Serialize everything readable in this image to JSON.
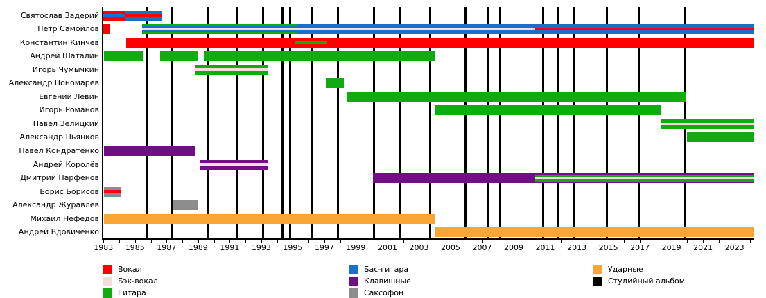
{
  "colors": {
    "vocal": "#ff0000",
    "backing": "#f7dada",
    "guitar": "#0fab0f",
    "bass": "#1a6fc9",
    "keys": "#730d86",
    "sax": "#8c8c8c",
    "drums": "#f9a637",
    "album": "#000000"
  },
  "legend": {
    "columns": [
      [
        {
          "label": "Вокал",
          "role": "vocal"
        },
        {
          "label": "Бэк-вокал",
          "role": "backing"
        },
        {
          "label": "Гитара",
          "role": "guitar"
        }
      ],
      [
        {
          "label": "Бас-гитара",
          "role": "bass"
        },
        {
          "label": "Клавишные",
          "role": "keys"
        },
        {
          "label": "Саксофон",
          "role": "sax"
        }
      ],
      [
        {
          "label": "Ударные",
          "role": "drums"
        },
        {
          "label": "Студийный альбом",
          "role": "album"
        }
      ]
    ]
  },
  "chart_data": {
    "type": "timeline",
    "title": "",
    "x_axis": {
      "min": 1982.9,
      "max": 2024.2,
      "labeled_ticks": [
        1983,
        1985,
        1987,
        1989,
        1991,
        1993,
        1995,
        1997,
        1999,
        2001,
        2003,
        2005,
        2007,
        2009,
        2011,
        2013,
        2015,
        2017,
        2019,
        2021,
        2023
      ],
      "minor_tick_step": 1
    },
    "album_lines": [
      1985.79,
      1987.31,
      1989.6,
      1991.51,
      1993.12,
      1994.36,
      1994.83,
      1996.2,
      1997.88,
      2000.16,
      2001.77,
      2003.72,
      2005.95,
      2007.34,
      2008.15,
      2010.86,
      2011.82,
      2012.84,
      2014.9,
      2016.95,
      2019.81
    ],
    "members": [
      {
        "name": "Святослав Задерий",
        "segments": [
          {
            "start": 1983.0,
            "end": 1984.4,
            "layers": [
              "vocal",
              "bass",
              "vocal"
            ]
          },
          {
            "start": 1984.4,
            "end": 1986.7,
            "layers": [
              "bass",
              "vocal",
              "bass"
            ]
          }
        ]
      },
      {
        "name": "Пётр Самойлов",
        "segments": [
          {
            "start": 1983.0,
            "end": 1983.4,
            "layers": [
              "vocal"
            ]
          },
          {
            "start": 1985.45,
            "end": 1995.25,
            "layers": [
              "guitar",
              "bass",
              "backing",
              "bass",
              "guitar"
            ]
          },
          {
            "start": 1995.25,
            "end": 2010.35,
            "layers": [
              "bass",
              "backing",
              "bass"
            ]
          },
          {
            "start": 2010.35,
            "end": 2024.2,
            "layers": [
              "bass",
              "vocal",
              "bass"
            ]
          }
        ]
      },
      {
        "name": "Константин Кинчев",
        "segments": [
          {
            "start": 1984.45,
            "end": 1995.1,
            "layers": [
              "vocal"
            ]
          },
          {
            "start": 1995.1,
            "end": 1997.2,
            "layers": [
              "vocal",
              "guitar",
              "vocal"
            ]
          },
          {
            "start": 1997.2,
            "end": 2024.2,
            "layers": [
              "vocal"
            ]
          }
        ]
      },
      {
        "name": "Андрей Шаталин",
        "segments": [
          {
            "start": 1983.05,
            "end": 1985.5,
            "layers": [
              "guitar"
            ]
          },
          {
            "start": 1986.6,
            "end": 1989.0,
            "layers": [
              "guitar"
            ]
          },
          {
            "start": 1989.35,
            "end": 2004.0,
            "layers": [
              "guitar"
            ]
          }
        ]
      },
      {
        "name": "Игорь Чумычкин",
        "segments": [
          {
            "start": 1988.85,
            "end": 1993.4,
            "layers": [
              "guitar",
              "backing",
              "guitar"
            ]
          }
        ]
      },
      {
        "name": "Александр Пономарёв",
        "segments": [
          {
            "start": 1997.1,
            "end": 1998.25,
            "layers": [
              "guitar"
            ]
          }
        ]
      },
      {
        "name": "Евгений Лёвин",
        "segments": [
          {
            "start": 1998.4,
            "end": 2019.95,
            "layers": [
              "guitar"
            ]
          }
        ]
      },
      {
        "name": "Игорь Романов",
        "segments": [
          {
            "start": 2004.0,
            "end": 2018.35,
            "layers": [
              "guitar"
            ]
          }
        ]
      },
      {
        "name": "Павел Зелицкий",
        "segments": [
          {
            "start": 2018.3,
            "end": 2024.2,
            "layers": [
              "guitar",
              "backing",
              "guitar"
            ]
          }
        ]
      },
      {
        "name": "Александр Пьянков",
        "segments": [
          {
            "start": 2020.0,
            "end": 2024.2,
            "layers": [
              "guitar"
            ]
          }
        ]
      },
      {
        "name": "Павел Кондратенко",
        "segments": [
          {
            "start": 1983.05,
            "end": 1988.85,
            "layers": [
              "keys"
            ]
          }
        ]
      },
      {
        "name": "Андрей Королёв",
        "segments": [
          {
            "start": 1989.1,
            "end": 1993.4,
            "layers": [
              "keys",
              "backing",
              "keys"
            ]
          }
        ]
      },
      {
        "name": "Дмитрий Парфёнов",
        "segments": [
          {
            "start": 2000.1,
            "end": 2010.35,
            "layers": [
              "keys"
            ]
          },
          {
            "start": 2010.35,
            "end": 2024.2,
            "layers": [
              "keys",
              "guitar",
              "backing",
              "guitar",
              "keys"
            ],
            "weights": [
              1,
              2,
              2,
              2,
              1
            ]
          }
        ]
      },
      {
        "name": "Борис Борисов",
        "segments": [
          {
            "start": 1983.05,
            "end": 1984.15,
            "layers": [
              "sax",
              "vocal",
              "sax"
            ]
          }
        ]
      },
      {
        "name": "Александр Журавлёв",
        "segments": [
          {
            "start": 1987.4,
            "end": 1988.95,
            "layers": [
              "sax"
            ]
          }
        ]
      },
      {
        "name": "Михаил Нефёдов",
        "segments": [
          {
            "start": 1983.05,
            "end": 2004.0,
            "layers": [
              "drums"
            ]
          }
        ]
      },
      {
        "name": "Андрей Вдовиченко",
        "segments": [
          {
            "start": 2004.0,
            "end": 2024.2,
            "layers": [
              "drums"
            ]
          }
        ]
      }
    ]
  }
}
